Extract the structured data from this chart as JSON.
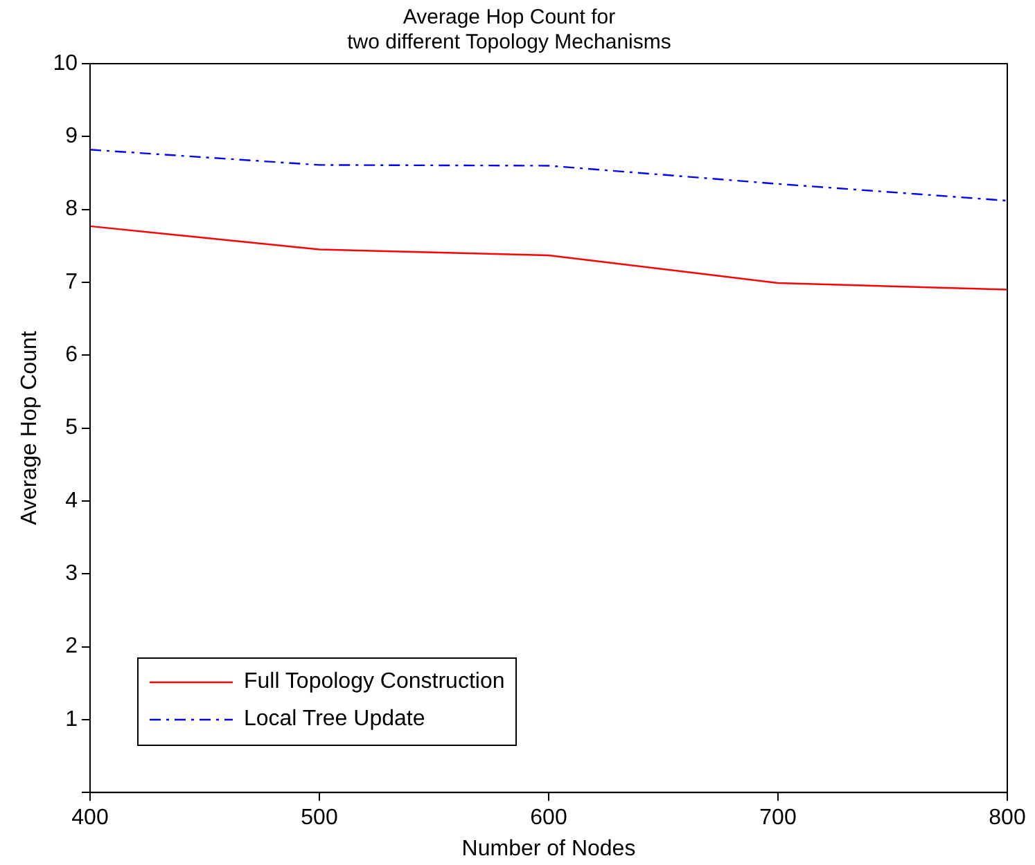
{
  "chart_data": {
    "type": "line",
    "title": "Average Hop Count for\ntwo different Topology Mechanisms",
    "xlabel": "Number of Nodes",
    "ylabel": "Average Hop Count",
    "x": [
      400,
      500,
      600,
      700,
      800
    ],
    "series": [
      {
        "name": "Full Topology Construction",
        "color": "#ff0000",
        "line_style": "solid",
        "values": [
          7.77,
          7.45,
          7.37,
          6.99,
          6.9
        ]
      },
      {
        "name": "Local Tree Update",
        "color": "#0000ff",
        "line_style": "dashdot",
        "values": [
          8.82,
          8.61,
          8.6,
          8.35,
          8.12
        ]
      }
    ],
    "xlim": [
      400,
      800
    ],
    "xticks": [
      400,
      500,
      600,
      700,
      800
    ],
    "ylim": [
      0,
      10
    ],
    "yticks": [
      {
        "value": 0,
        "label": null
      },
      1,
      2,
      3,
      4,
      5,
      6,
      7,
      8,
      9,
      10
    ],
    "grid": false,
    "legend": "bottom left",
    "marker": "none"
  }
}
